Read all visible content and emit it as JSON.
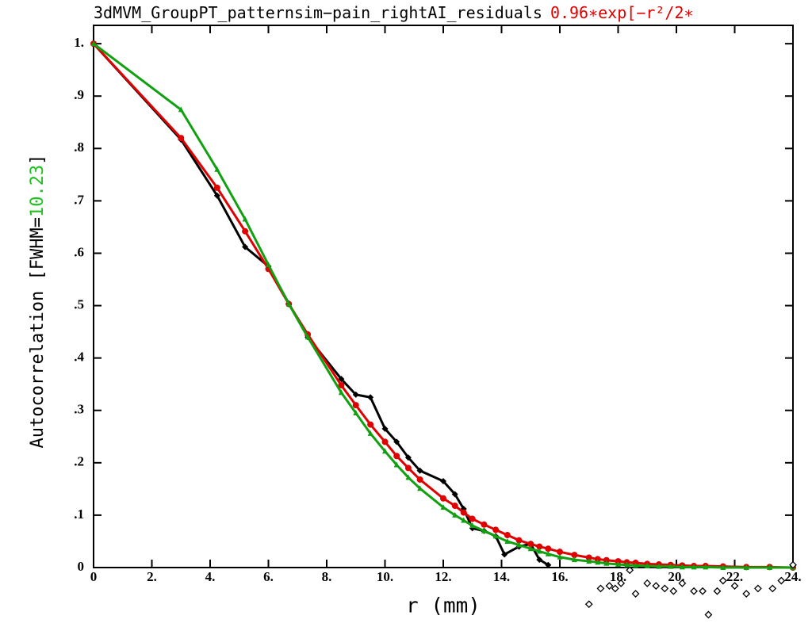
{
  "chart_data": {
    "type": "line",
    "title": "3dMVM_GroupPT_patternsim−pain_rightAI_residuals",
    "subtitle": "0.96∗exp[−r²/2∗",
    "y_label": "Autocorrelation  [FWHM=",
    "y_label_value": "10.23",
    "y_label_end": "]",
    "x_label": "r (mm)",
    "xlim": [
      0,
      24
    ],
    "ylim": [
      0,
      1.035
    ],
    "xticks": [
      0,
      {
        "value": 2,
        "label": "2."
      },
      {
        "value": 4,
        "label": "4."
      },
      {
        "value": 6,
        "label": "6."
      },
      {
        "value": 8,
        "label": "8."
      },
      {
        "value": 10,
        "label": "10."
      },
      {
        "value": 12,
        "label": "12."
      },
      {
        "value": 14,
        "label": "14."
      },
      {
        "value": 16,
        "label": "16."
      },
      {
        "value": 18,
        "label": "18."
      },
      {
        "value": 20,
        "label": "20."
      },
      {
        "value": 22,
        "label": "22."
      },
      {
        "value": 24,
        "label": "24."
      }
    ],
    "yticks": [
      0,
      {
        "value": 0.1,
        "label": ".1"
      },
      {
        "value": 0.2,
        "label": ".2"
      },
      {
        "value": 0.3,
        "label": ".3"
      },
      {
        "value": 0.4,
        "label": ".4"
      },
      {
        "value": 0.5,
        "label": ".5"
      },
      {
        "value": 0.6,
        "label": ".6"
      },
      {
        "value": 0.7,
        "label": ".7"
      },
      {
        "value": 0.8,
        "label": ".8"
      },
      {
        "value": 0.9,
        "label": ".9"
      },
      {
        "value": 1,
        "label": "1."
      }
    ],
    "series": [
      {
        "color": "#000000",
        "marker": "diamond",
        "x": [
          0,
          3.0,
          4.24,
          5.2,
          6.0,
          6.7,
          7.35,
          8.5,
          9.0,
          9.5,
          10.0,
          10.4,
          10.8,
          11.2,
          12.0,
          12.4,
          12.7,
          13.0,
          13.4,
          13.8,
          14.1,
          14.6,
          15.0,
          15.3,
          15.6
        ],
        "values": [
          1.0,
          0.817,
          0.71,
          0.612,
          0.575,
          0.504,
          0.44,
          0.36,
          0.33,
          0.325,
          0.265,
          0.24,
          0.21,
          0.185,
          0.165,
          0.14,
          0.112,
          0.075,
          0.07,
          0.06,
          0.025,
          0.04,
          0.045,
          0.015,
          0.005
        ]
      },
      {
        "color": "#e00000",
        "marker": "circle",
        "x": [
          0,
          3.0,
          4.24,
          5.2,
          6.0,
          6.7,
          7.35,
          8.5,
          9.0,
          9.5,
          10.0,
          10.4,
          10.8,
          11.2,
          12.0,
          12.4,
          12.7,
          13.0,
          13.4,
          13.8,
          14.2,
          14.6,
          15.0,
          15.3,
          15.6,
          16.0,
          16.5,
          17.0,
          17.3,
          17.6,
          18.0,
          18.3,
          18.6,
          19.0,
          19.4,
          19.8,
          20.2,
          20.6,
          21.0,
          21.6,
          22.4,
          23.2,
          24.0
        ],
        "values": [
          1.0,
          0.82,
          0.725,
          0.642,
          0.57,
          0.503,
          0.445,
          0.348,
          0.31,
          0.273,
          0.24,
          0.213,
          0.19,
          0.168,
          0.132,
          0.118,
          0.105,
          0.093,
          0.082,
          0.072,
          0.062,
          0.052,
          0.045,
          0.04,
          0.036,
          0.03,
          0.024,
          0.019,
          0.016,
          0.014,
          0.012,
          0.01,
          0.009,
          0.007,
          0.006,
          0.005,
          0.004,
          0.003,
          0.003,
          0.002,
          0.001,
          0.001,
          0.0
        ]
      },
      {
        "color": "#10a010",
        "marker": "triangle",
        "x": [
          0,
          3.0,
          4.24,
          5.2,
          6.0,
          6.7,
          7.35,
          8.5,
          9.0,
          9.5,
          10.0,
          10.4,
          10.8,
          11.2,
          12.0,
          12.4,
          12.7,
          13.0,
          13.4,
          13.8,
          14.2,
          14.6,
          15.0,
          15.3,
          15.6,
          16.0,
          16.5,
          17.0,
          17.3,
          17.6,
          18.0,
          18.3,
          18.6,
          19.0,
          19.4,
          19.8,
          20.2,
          20.6,
          21.0,
          21.6,
          22.4,
          23.2,
          24.0
        ],
        "values": [
          1.0,
          0.874,
          0.76,
          0.665,
          0.578,
          0.503,
          0.44,
          0.334,
          0.295,
          0.256,
          0.222,
          0.196,
          0.172,
          0.151,
          0.115,
          0.1,
          0.09,
          0.08,
          0.07,
          0.06,
          0.05,
          0.043,
          0.036,
          0.031,
          0.026,
          0.02,
          0.015,
          0.012,
          0.01,
          0.008,
          0.006,
          0.005,
          0.004,
          0.003,
          0.002,
          0.002,
          0.001,
          0.001,
          0.001,
          0.0,
          0.0,
          0.0,
          0.0
        ]
      },
      {
        "color": "#000000",
        "marker": "open-diamond",
        "lines": false,
        "x": [
          17.0,
          17.4,
          17.7,
          17.9,
          18.1,
          18.4,
          18.6,
          19.0,
          19.3,
          19.6,
          19.9,
          20.2,
          20.6,
          20.9,
          21.1,
          21.4,
          21.6,
          22.0,
          22.4,
          22.8,
          23.3,
          23.6,
          24.0
        ],
        "values": [
          -0.07,
          -0.04,
          -0.035,
          -0.04,
          -0.03,
          -0.005,
          -0.05,
          -0.03,
          -0.035,
          -0.04,
          -0.045,
          -0.03,
          -0.045,
          -0.045,
          -0.09,
          -0.045,
          -0.025,
          -0.035,
          -0.05,
          -0.04,
          -0.04,
          -0.025,
          0.005
        ]
      }
    ]
  }
}
